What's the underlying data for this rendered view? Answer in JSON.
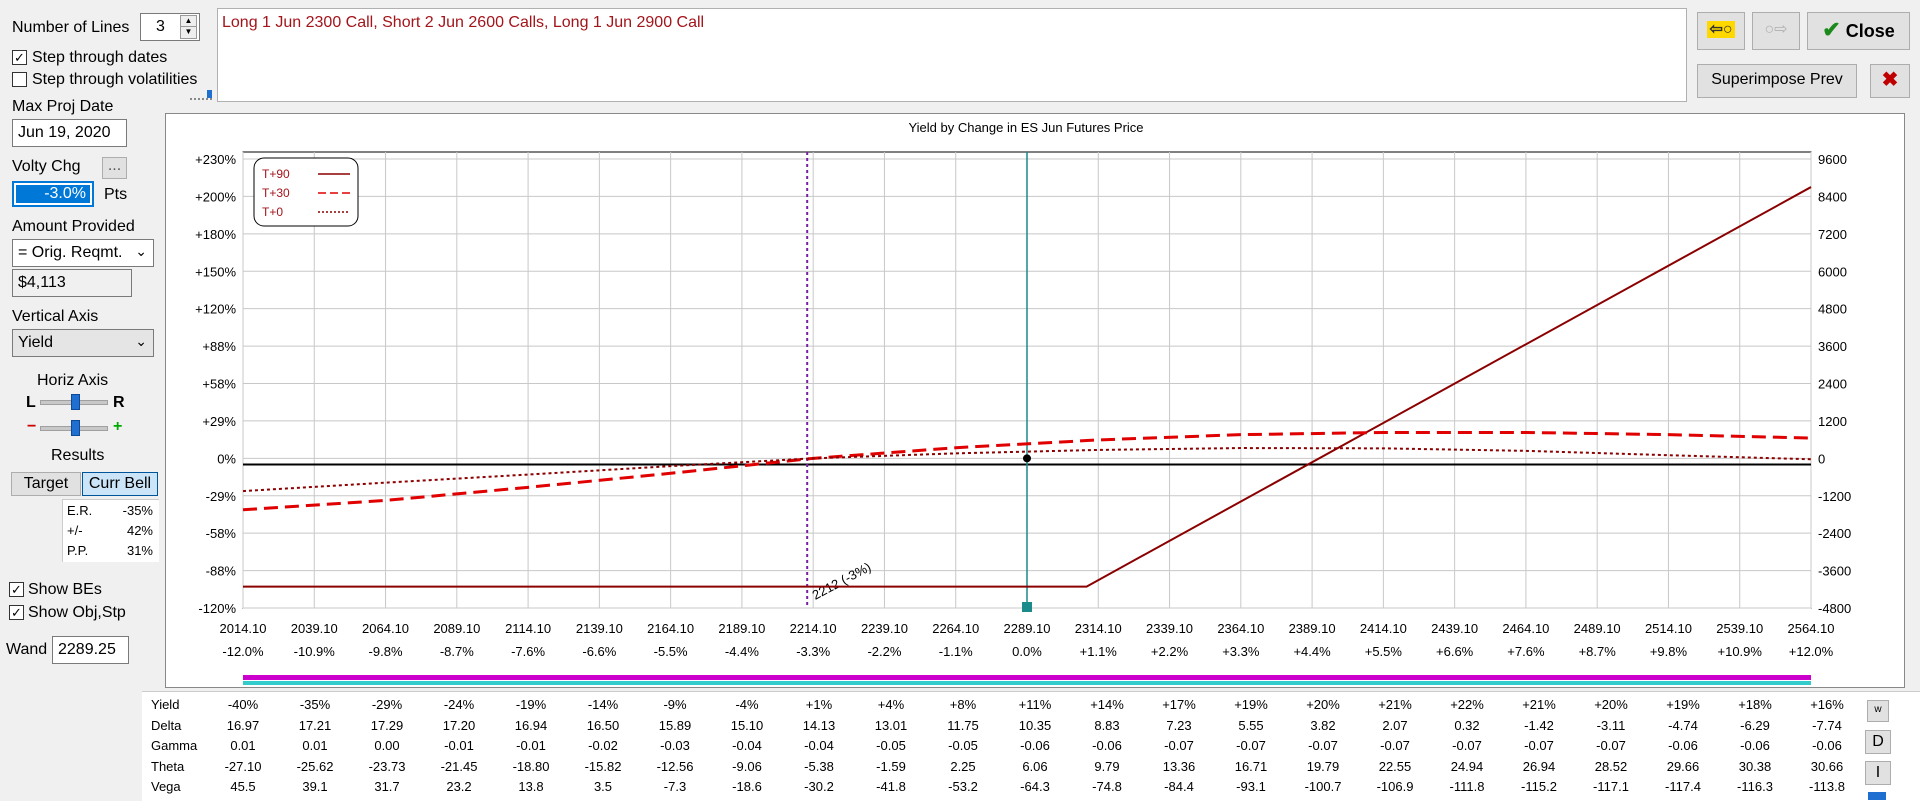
{
  "controls": {
    "num_lines_label": "Number of Lines",
    "num_lines_value": "3",
    "step_dates_label": "Step through dates",
    "step_dates_checked": true,
    "step_vols_label": "Step through volatilities",
    "step_vols_checked": false,
    "max_proj_date_label": "Max Proj Date",
    "max_proj_date_value": "Jun 19, 2020",
    "volty_chg_label": "Volty Chg",
    "volty_btn": "...",
    "volty_chg_value": "-3.0%",
    "volty_unit": "Pts",
    "amount_label": "Amount Provided",
    "amount_select": "= Orig. Reqmt.",
    "amount_value": "$4,113",
    "vertical_axis_label": "Vertical Axis",
    "vertical_axis_select": "Yield",
    "horiz_axis_label": "Horiz Axis",
    "slider_left": "L",
    "slider_right": "R",
    "slider_minus": "−",
    "slider_plus": "+",
    "results_label": "Results",
    "target_button": "Target",
    "curr_bell_button": "Curr Bell",
    "results": [
      {
        "label": "E.R.",
        "value": "-35%"
      },
      {
        "label": "+/-",
        "value": "42%"
      },
      {
        "label": "P.P.",
        "value": "31%"
      }
    ],
    "show_bes_label": "Show BEs",
    "show_bes_checked": true,
    "show_obj_label": "Show Obj,Stp",
    "show_obj_checked": true,
    "wand_label": "Wand",
    "wand_value": "2289.25"
  },
  "description": "Long 1 Jun 2300 Call, Short 2 Jun 2600 Calls, Long 1 Jun 2900 Call",
  "buttons": {
    "close": "Close",
    "superimpose": "Superimpose Prev",
    "back_arrow": "⇦○",
    "fwd_arrow": "○⇨",
    "close_x": "✖"
  },
  "chart_data": {
    "type": "line",
    "title": "Yield by Change in ES Jun Futures Price",
    "x_labels": [
      "2014.10",
      "2039.10",
      "2064.10",
      "2089.10",
      "2114.10",
      "2139.10",
      "2164.10",
      "2189.10",
      "2214.10",
      "2239.10",
      "2264.10",
      "2289.10",
      "2314.10",
      "2339.10",
      "2364.10",
      "2389.10",
      "2414.10",
      "2439.10",
      "2464.10",
      "2489.10",
      "2514.10",
      "2539.10",
      "2564.10"
    ],
    "x_pct_labels": [
      "-12.0%",
      "-10.9%",
      "-9.8%",
      "-8.7%",
      "-7.6%",
      "-6.6%",
      "-5.5%",
      "-4.4%",
      "-3.3%",
      "-2.2%",
      "-1.1%",
      "0.0%",
      "+1.1%",
      "+2.2%",
      "+3.3%",
      "+4.4%",
      "+5.5%",
      "+6.6%",
      "+7.6%",
      "+8.7%",
      "+9.8%",
      "+10.9%",
      "+12.0%"
    ],
    "y_left_labels": [
      "+230%",
      "+200%",
      "+180%",
      "+150%",
      "+120%",
      "+88%",
      "+58%",
      "+29%",
      "0%",
      "-29%",
      "-58%",
      "-88%",
      "-120%"
    ],
    "y_right_labels": [
      "9600",
      "8400",
      "7200",
      "6000",
      "4800",
      "3600",
      "2400",
      "1200",
      "0",
      "-1200",
      "-2400",
      "-3600",
      "-4800"
    ],
    "xlim": [
      2014.1,
      2564.1
    ],
    "ylim_right": [
      -4800,
      9600
    ],
    "series": [
      {
        "name": "T+90",
        "color": "#8b0000",
        "dash": "solid",
        "x": [
          2014.1,
          2310.0,
          2564.1
        ],
        "y": [
          -4113,
          -4113,
          8700
        ]
      },
      {
        "name": "T+30",
        "color": "#e00000",
        "dash": "long",
        "x": [
          2014.1,
          2064.1,
          2114.1,
          2164.1,
          2214.1,
          2264.1,
          2314.1,
          2364.1,
          2414.1,
          2464.1,
          2514.1,
          2564.1
        ],
        "y": [
          -1650,
          -1350,
          -930,
          -480,
          0,
          340,
          590,
          760,
          830,
          830,
          760,
          650
        ]
      },
      {
        "name": "T+0",
        "color": "#8b0000",
        "dash": "dot",
        "x": [
          2014.1,
          2064.1,
          2114.1,
          2164.1,
          2214.1,
          2264.1,
          2314.1,
          2364.1,
          2414.1,
          2464.1,
          2514.1,
          2564.1
        ],
        "y": [
          -1050,
          -780,
          -520,
          -250,
          0,
          160,
          270,
          330,
          320,
          240,
          100,
          -30
        ]
      }
    ],
    "markers": {
      "breakeven_x": 2212,
      "breakeven_label": "2212 (-3%)",
      "current_x": 2289.1
    }
  },
  "greeks": {
    "rows": [
      {
        "label": "Yield",
        "values": [
          "-40%",
          "-35%",
          "-29%",
          "-24%",
          "-19%",
          "-14%",
          "-9%",
          "-4%",
          "+1%",
          "+4%",
          "+8%",
          "+11%",
          "+14%",
          "+17%",
          "+19%",
          "+20%",
          "+21%",
          "+22%",
          "+21%",
          "+20%",
          "+19%",
          "+18%",
          "+16%"
        ]
      },
      {
        "label": "Delta",
        "values": [
          "16.97",
          "17.21",
          "17.29",
          "17.20",
          "16.94",
          "16.50",
          "15.89",
          "15.10",
          "14.13",
          "13.01",
          "11.75",
          "10.35",
          "8.83",
          "7.23",
          "5.55",
          "3.82",
          "2.07",
          "0.32",
          "-1.42",
          "-3.11",
          "-4.74",
          "-6.29",
          "-7.74"
        ]
      },
      {
        "label": "Gamma",
        "values": [
          "0.01",
          "0.01",
          "0.00",
          "-0.01",
          "-0.01",
          "-0.02",
          "-0.03",
          "-0.04",
          "-0.04",
          "-0.05",
          "-0.05",
          "-0.06",
          "-0.06",
          "-0.07",
          "-0.07",
          "-0.07",
          "-0.07",
          "-0.07",
          "-0.07",
          "-0.07",
          "-0.06",
          "-0.06",
          "-0.06"
        ]
      },
      {
        "label": "Theta",
        "values": [
          "-27.10",
          "-25.62",
          "-23.73",
          "-21.45",
          "-18.80",
          "-15.82",
          "-12.56",
          "-9.06",
          "-5.38",
          "-1.59",
          "2.25",
          "6.06",
          "9.79",
          "13.36",
          "16.71",
          "19.79",
          "22.55",
          "24.94",
          "26.94",
          "28.52",
          "29.66",
          "30.38",
          "30.66"
        ]
      },
      {
        "label": "Vega",
        "values": [
          "45.5",
          "39.1",
          "31.7",
          "23.2",
          "13.8",
          "3.5",
          "-7.3",
          "-18.6",
          "-30.2",
          "-41.8",
          "-53.2",
          "-64.3",
          "-74.8",
          "-84.4",
          "-93.1",
          "-100.7",
          "-106.9",
          "-111.8",
          "-115.2",
          "-117.1",
          "-117.4",
          "-116.3",
          "-113.8"
        ]
      }
    ],
    "side_buttons": [
      "w",
      "D",
      "I"
    ]
  }
}
